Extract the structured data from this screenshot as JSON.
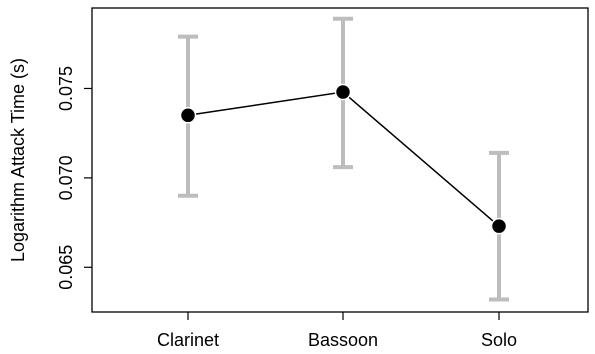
{
  "chart_data": {
    "type": "line",
    "title": "",
    "xlabel": "",
    "ylabel": "Logarithm Attack Time (s)",
    "categories": [
      "Clarinet",
      "Bassoon",
      "Solo"
    ],
    "series": [
      {
        "values": [
          0.0735,
          0.0748,
          0.0673
        ],
        "error_low": [
          0.069,
          0.0706,
          0.0632
        ],
        "error_high": [
          0.0779,
          0.0789,
          0.0714
        ]
      }
    ],
    "ylim": [
      0.0625,
      0.0795
    ],
    "yticks": [
      0.065,
      0.07,
      0.075
    ],
    "ytick_labels": [
      "0.065",
      "0.070",
      "0.075"
    ],
    "grid": false,
    "legend": "none",
    "colors": {
      "line": "#000000",
      "point": "#000000",
      "errorbar": "#bdbdbd",
      "axis": "#000000"
    }
  }
}
